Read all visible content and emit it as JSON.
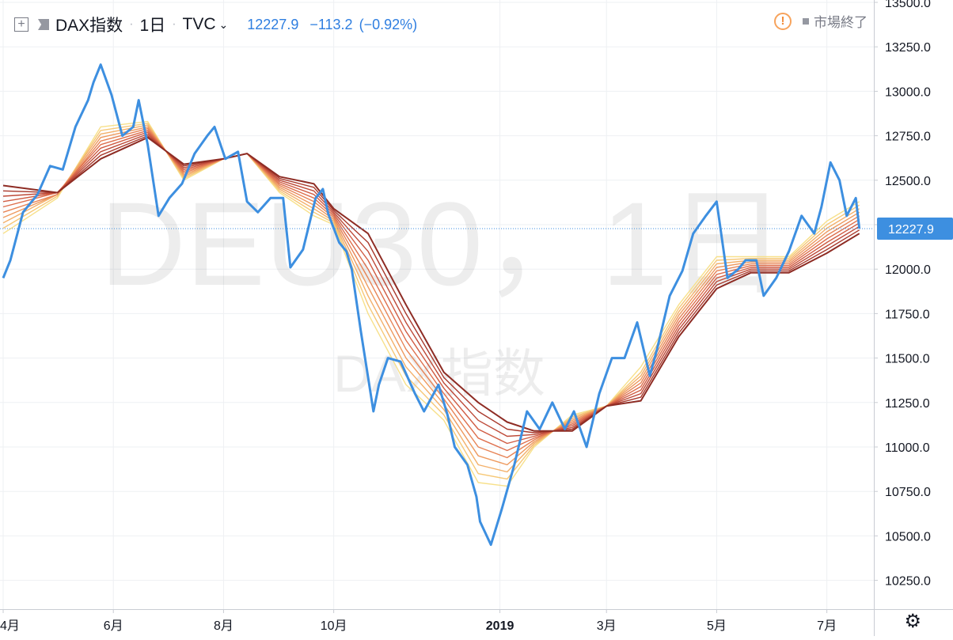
{
  "header": {
    "symbol_name": "DAX指数",
    "interval": "1日",
    "source": "TVC",
    "last_value": "12227.9",
    "change": "−113.2",
    "change_pct": "(−0.92%)",
    "market_status": "市場終了",
    "expand_icon": "plus-square-icon",
    "flag_icon": "flag-icon",
    "warning_icon": "exclamation-circle-icon",
    "settings_icon": "gear-icon"
  },
  "watermark": {
    "line1": "DEU30，1日",
    "line2": "DAX指数"
  },
  "colors": {
    "price": "#3d8fe0",
    "ribbon": [
      "#f7e08a",
      "#f6c877",
      "#f3b06a",
      "#ee9a5f",
      "#e78456",
      "#de6f4d",
      "#d05c43",
      "#be4a38",
      "#a93a2d",
      "#8e2c24"
    ],
    "last_price_line": "#3d8fe0"
  },
  "chart_data": {
    "type": "line",
    "title": "DAX指数",
    "x_range": [
      "2018-04-01",
      "2019-07-20"
    ],
    "ylim": [
      10100,
      13600
    ],
    "y_ticks": [
      10250,
      10500,
      10750,
      11000,
      11250,
      11500,
      11750,
      12000,
      12250,
      12500,
      12750,
      13000,
      13250,
      13500
    ],
    "y_tick_labels": [
      "10250.0",
      "10500.0",
      "10750.0",
      "11000.0",
      "11250.0",
      "11500.0",
      "11750.0",
      "12000.0",
      "12250.0",
      "12500.0",
      "12750.0",
      "13000.0",
      "13250.0",
      "13500.0"
    ],
    "x_ticks": [
      {
        "date": "2018-04-01",
        "label": "4月",
        "bold": false
      },
      {
        "date": "2018-06-01",
        "label": "6月",
        "bold": false
      },
      {
        "date": "2018-08-01",
        "label": "8月",
        "bold": false
      },
      {
        "date": "2018-10-01",
        "label": "10月",
        "bold": false
      },
      {
        "date": "2019-01-01",
        "label": "2019",
        "bold": true
      },
      {
        "date": "2019-03-01",
        "label": "3月",
        "bold": false
      },
      {
        "date": "2019-05-01",
        "label": "5月",
        "bold": false
      },
      {
        "date": "2019-07-01",
        "label": "7月",
        "bold": false
      }
    ],
    "last_price": 12227.9,
    "last_price_label": "12227.9",
    "grid": true,
    "series": [
      {
        "type": "line",
        "x": [
          "2018-04-01",
          "2018-04-05",
          "2018-04-12",
          "2018-04-20",
          "2018-04-27",
          "2018-05-04",
          "2018-05-11",
          "2018-05-18",
          "2018-05-21",
          "2018-05-25",
          "2018-05-31",
          "2018-06-06",
          "2018-06-12",
          "2018-06-15",
          "2018-06-20",
          "2018-06-26",
          "2018-07-02",
          "2018-07-09",
          "2018-07-16",
          "2018-07-23",
          "2018-07-27",
          "2018-08-02",
          "2018-08-09",
          "2018-08-14",
          "2018-08-20",
          "2018-08-27",
          "2018-09-03",
          "2018-09-07",
          "2018-09-14",
          "2018-09-21",
          "2018-09-25",
          "2018-09-28",
          "2018-10-04",
          "2018-10-08",
          "2018-10-11",
          "2018-10-16",
          "2018-10-23",
          "2018-10-26",
          "2018-10-31",
          "2018-11-07",
          "2018-11-15",
          "2018-11-20",
          "2018-11-28",
          "2018-12-03",
          "2018-12-07",
          "2018-12-14",
          "2018-12-19",
          "2018-12-21",
          "2018-12-27",
          "2019-01-02",
          "2019-01-09",
          "2019-01-16",
          "2019-01-23",
          "2019-01-30",
          "2019-02-06",
          "2019-02-11",
          "2019-02-18",
          "2019-02-25",
          "2019-03-04",
          "2019-03-11",
          "2019-03-18",
          "2019-03-25",
          "2019-03-29",
          "2019-04-05",
          "2019-04-12",
          "2019-04-18",
          "2019-04-25",
          "2019-05-01",
          "2019-05-07",
          "2019-05-13",
          "2019-05-17",
          "2019-05-23",
          "2019-05-27",
          "2019-06-03",
          "2019-06-10",
          "2019-06-17",
          "2019-06-24",
          "2019-06-28",
          "2019-07-03",
          "2019-07-08",
          "2019-07-12",
          "2019-07-17",
          "2019-07-19"
        ],
        "y": [
          11950,
          12050,
          12320,
          12420,
          12580,
          12560,
          12800,
          12950,
          13050,
          13150,
          12980,
          12750,
          12800,
          12950,
          12700,
          12300,
          12400,
          12480,
          12650,
          12750,
          12800,
          12620,
          12660,
          12380,
          12320,
          12400,
          12400,
          12010,
          12110,
          12400,
          12450,
          12310,
          12150,
          12100,
          12000,
          11650,
          11200,
          11350,
          11500,
          11480,
          11300,
          11200,
          11350,
          11180,
          11000,
          10900,
          10720,
          10580,
          10450,
          10650,
          10900,
          11200,
          11100,
          11250,
          11100,
          11200,
          11000,
          11300,
          11500,
          11500,
          11700,
          11400,
          11550,
          11850,
          11990,
          12200,
          12300,
          12380,
          11950,
          12000,
          12050,
          12050,
          11850,
          11950,
          12100,
          12300,
          12200,
          12350,
          12600,
          12500,
          12300,
          12400,
          12227.9
        ]
      }
    ],
    "ribbon": {
      "type": "line",
      "note": "moving-average ribbon (10 lines)",
      "x": [
        "2018-04-01",
        "2018-05-01",
        "2018-05-25",
        "2018-06-20",
        "2018-07-10",
        "2018-08-01",
        "2018-08-14",
        "2018-09-01",
        "2018-09-20",
        "2018-10-01",
        "2018-10-20",
        "2018-11-10",
        "2018-12-01",
        "2018-12-20",
        "2019-01-05",
        "2019-01-20",
        "2019-02-10",
        "2019-03-01",
        "2019-03-20",
        "2019-04-10",
        "2019-05-01",
        "2019-05-20",
        "2019-06-10",
        "2019-07-01",
        "2019-07-19"
      ],
      "lines": [
        [
          12200,
          12400,
          12800,
          12830,
          12500,
          12620,
          12650,
          12430,
          12300,
          12250,
          11750,
          11350,
          11150,
          10800,
          10780,
          11000,
          11180,
          11230,
          11450,
          11800,
          12070,
          12070,
          12070,
          12270,
          12380
        ],
        [
          12230,
          12410,
          12780,
          12820,
          12510,
          12620,
          12650,
          12440,
          12320,
          12260,
          11800,
          11400,
          11180,
          10850,
          10820,
          11010,
          11170,
          11230,
          11420,
          11780,
          12050,
          12060,
          12060,
          12250,
          12360
        ],
        [
          12260,
          12420,
          12760,
          12810,
          12520,
          12620,
          12650,
          12450,
          12340,
          12270,
          11850,
          11450,
          11210,
          10900,
          10860,
          11020,
          11160,
          11230,
          11400,
          11760,
          12030,
          12050,
          12050,
          12230,
          12340
        ],
        [
          12290,
          12420,
          12740,
          12800,
          12530,
          12620,
          12650,
          12460,
          12360,
          12280,
          11900,
          11500,
          11240,
          10950,
          10900,
          11030,
          11150,
          11230,
          11380,
          11740,
          12010,
          12040,
          12040,
          12210,
          12320
        ],
        [
          12320,
          12420,
          12720,
          12790,
          12540,
          12620,
          12650,
          12470,
          12380,
          12290,
          11950,
          11550,
          11270,
          11000,
          10940,
          11040,
          11140,
          11230,
          11360,
          11720,
          11990,
          12030,
          12030,
          12190,
          12300
        ],
        [
          12350,
          12430,
          12700,
          12780,
          12550,
          12620,
          12650,
          12480,
          12400,
          12300,
          12000,
          11600,
          11300,
          11050,
          10980,
          11050,
          11130,
          11230,
          11340,
          11700,
          11970,
          12020,
          12020,
          12170,
          12280
        ],
        [
          12380,
          12430,
          12680,
          12770,
          12560,
          12620,
          12650,
          12490,
          12420,
          12310,
          12050,
          11650,
          11330,
          11100,
          11020,
          11060,
          11120,
          11230,
          11320,
          11680,
          11950,
          12010,
          12010,
          12150,
          12260
        ],
        [
          12410,
          12430,
          12660,
          12760,
          12570,
          12620,
          12650,
          12500,
          12440,
          12320,
          12100,
          11700,
          11360,
          11150,
          11060,
          11070,
          11110,
          11230,
          11300,
          11660,
          11930,
          12000,
          12000,
          12130,
          12240
        ],
        [
          12440,
          12430,
          12640,
          12750,
          12580,
          12620,
          12650,
          12510,
          12460,
          12330,
          12150,
          11750,
          11390,
          11200,
          11100,
          11080,
          11100,
          11230,
          11280,
          11640,
          11910,
          11990,
          11990,
          12110,
          12220
        ],
        [
          12470,
          12430,
          12620,
          12740,
          12590,
          12620,
          12650,
          12520,
          12480,
          12340,
          12200,
          11800,
          11420,
          11250,
          11140,
          11090,
          11090,
          11230,
          11260,
          11620,
          11890,
          11980,
          11980,
          12090,
          12200
        ]
      ]
    }
  }
}
